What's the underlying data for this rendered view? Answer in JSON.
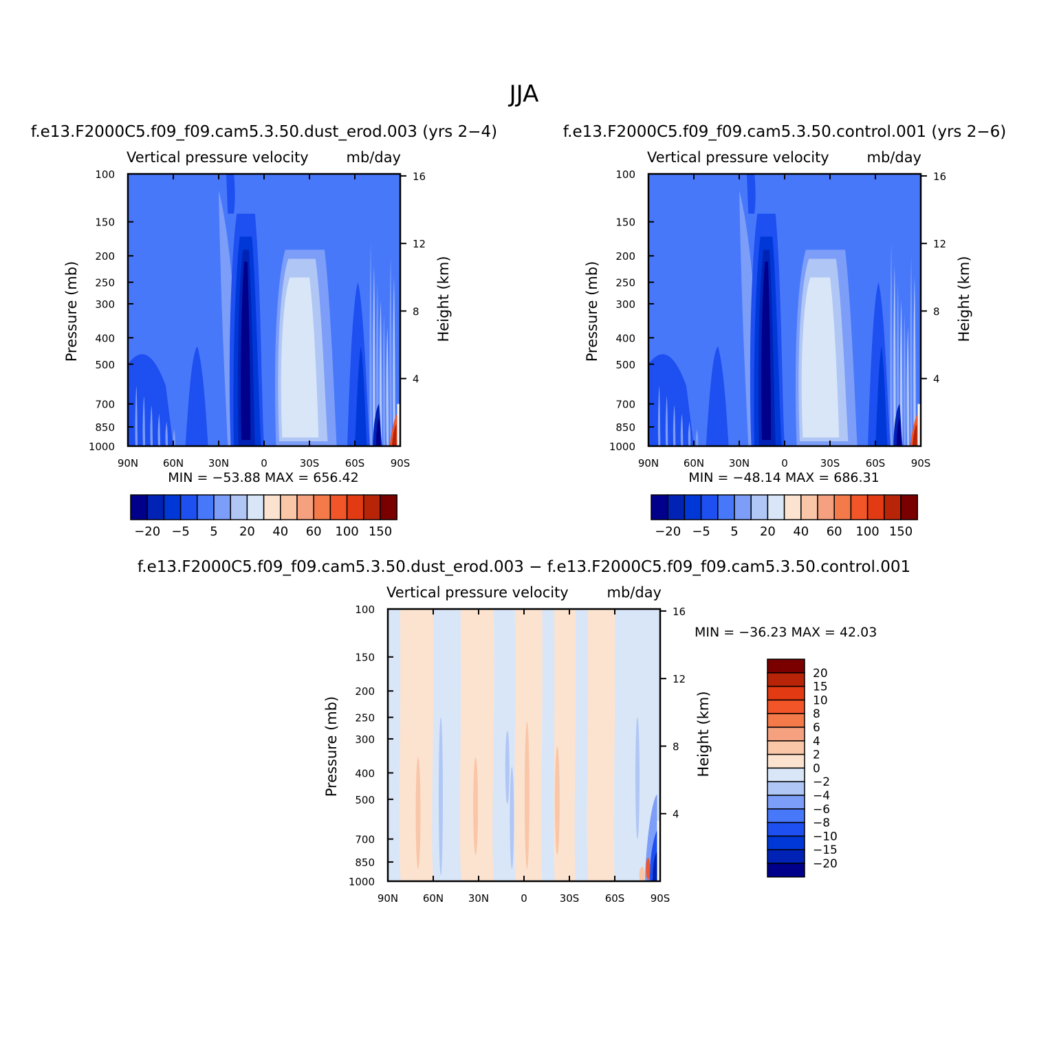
{
  "page": {
    "title": "JJA"
  },
  "panels": [
    {
      "case_title": "f.e13.F2000C5.f09_f09.cam5.3.50.dust_erod.003 (yrs 2−4)",
      "left_string": "Vertical pressure velocity",
      "right_string": "mb/day",
      "stats": "MIN = −53.88   MAX = 656.42"
    },
    {
      "case_title": "f.e13.F2000C5.f09_f09.cam5.3.50.control.001 (yrs 2−6)",
      "left_string": "Vertical pressure velocity",
      "right_string": "mb/day",
      "stats": "MIN = −48.14   MAX = 686.31"
    },
    {
      "case_title": "f.e13.F2000C5.f09_f09.cam5.3.50.dust_erod.003 − f.e13.F2000C5.f09_f09.cam5.3.50.control.001",
      "left_string": "Vertical pressure velocity",
      "right_string": "mb/day",
      "stats": "MIN = −36.23   MAX =   42.03"
    }
  ],
  "colors": {
    "blue_ramp": [
      "#00008B",
      "#0022B5",
      "#0038D8",
      "#1E4FF0",
      "#4878FA",
      "#7D9EF8",
      "#B0C6F5",
      "#D8E6F8"
    ],
    "red_ramp": [
      "#FCE3D0",
      "#F9C6A8",
      "#F5A07E",
      "#F57A4A",
      "#F25528",
      "#E23A12",
      "#B82408",
      "#7A0000"
    ]
  },
  "chart_data": [
    {
      "type": "heatmap",
      "title": "f.e13.F2000C5.f09_f09.cam5.3.50.dust_erod.003 (yrs 2−4)",
      "variable": "Vertical pressure velocity",
      "units": "mb/day",
      "xlabel": "",
      "ylabel": "Pressure (mb)",
      "ylabel_right": "Height (km)",
      "x_ticks": [
        "90N",
        "60N",
        "30N",
        "0",
        "30S",
        "60S",
        "90S"
      ],
      "y_ticks": [
        100,
        150,
        200,
        250,
        300,
        400,
        500,
        700,
        850,
        1000
      ],
      "y_scale": "log",
      "ylim": [
        1000,
        100
      ],
      "right_ticks": [
        4,
        8,
        12,
        16
      ],
      "min": -53.88,
      "max": 656.42,
      "colorbar": {
        "levels": [
          -20,
          -15,
          -10,
          -5,
          0,
          5,
          10,
          20,
          30,
          40,
          50,
          60,
          80,
          100,
          150
        ],
        "labels": [
          "−20",
          "−5",
          "5",
          "20",
          "40",
          "60",
          "100",
          "150"
        ],
        "orientation": "horizontal"
      },
      "features": [
        {
          "lat": -10,
          "p_range": [
            180,
            1000
          ],
          "value": -20
        },
        {
          "lat": 25,
          "p_range": [
            210,
            950
          ],
          "value": 30
        },
        {
          "lat": 75,
          "p_range": [
            700,
            1000
          ],
          "value": 100
        }
      ]
    },
    {
      "type": "heatmap",
      "title": "f.e13.F2000C5.f09_f09.cam5.3.50.control.001 (yrs 2−6)",
      "variable": "Vertical pressure velocity",
      "units": "mb/day",
      "xlabel": "",
      "ylabel": "Pressure (mb)",
      "ylabel_right": "Height (km)",
      "x_ticks": [
        "90N",
        "60N",
        "30N",
        "0",
        "30S",
        "60S",
        "90S"
      ],
      "y_ticks": [
        100,
        150,
        200,
        250,
        300,
        400,
        500,
        700,
        850,
        1000
      ],
      "y_scale": "log",
      "ylim": [
        1000,
        100
      ],
      "right_ticks": [
        4,
        8,
        12,
        16
      ],
      "min": -48.14,
      "max": 686.31,
      "colorbar": {
        "levels": [
          -20,
          -15,
          -10,
          -5,
          0,
          5,
          10,
          20,
          30,
          40,
          50,
          60,
          80,
          100,
          150
        ],
        "labels": [
          "−20",
          "−5",
          "5",
          "20",
          "40",
          "60",
          "100",
          "150"
        ],
        "orientation": "horizontal"
      },
      "features": [
        {
          "lat": -10,
          "p_range": [
            180,
            1000
          ],
          "value": -20
        },
        {
          "lat": 25,
          "p_range": [
            210,
            950
          ],
          "value": 30
        },
        {
          "lat": 75,
          "p_range": [
            700,
            1000
          ],
          "value": 100
        }
      ]
    },
    {
      "type": "heatmap",
      "title": "f.e13.F2000C5.f09_f09.cam5.3.50.dust_erod.003 − f.e13.F2000C5.f09_f09.cam5.3.50.control.001",
      "variable": "Vertical pressure velocity",
      "units": "mb/day",
      "xlabel": "",
      "ylabel": "Pressure (mb)",
      "ylabel_right": "Height (km)",
      "x_ticks": [
        "90N",
        "60N",
        "30N",
        "0",
        "30S",
        "60S",
        "90S"
      ],
      "y_ticks": [
        100,
        150,
        200,
        250,
        300,
        400,
        500,
        700,
        850,
        1000
      ],
      "y_scale": "log",
      "ylim": [
        1000,
        100
      ],
      "right_ticks": [
        4,
        8,
        12,
        16
      ],
      "min": -36.23,
      "max": 42.03,
      "colorbar": {
        "levels": [
          20,
          15,
          10,
          8,
          6,
          4,
          2,
          0,
          -2,
          -4,
          -6,
          -8,
          -10,
          -15,
          -20
        ],
        "labels": [
          "20",
          "15",
          "10",
          "8",
          "6",
          "4",
          "2",
          "0",
          "−2",
          "−4",
          "−6",
          "−8",
          "−10",
          "−15",
          "−20"
        ],
        "orientation": "vertical"
      },
      "features": [
        {
          "lat": 60,
          "p_range": [
            100,
            1000
          ],
          "value": 0
        },
        {
          "lat": 85,
          "p_range": [
            500,
            1000
          ],
          "value": -10
        }
      ]
    }
  ]
}
